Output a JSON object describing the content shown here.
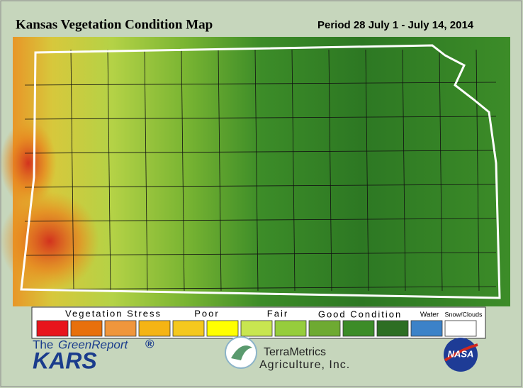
{
  "header": {
    "title": "Kansas Vegetation Condition Map",
    "period": "Period 28  July 1 - July 14, 2014"
  },
  "legend": {
    "labels": [
      "Vegetation Stress",
      "Poor",
      "Fair",
      "Good Condition",
      "Water",
      "Snow/Clouds"
    ],
    "colors": [
      "#e8141c",
      "#e8700c",
      "#f0963c",
      "#f5b414",
      "#f5c81e",
      "#ffff00",
      "#c8e650",
      "#96cd3c",
      "#6eaa32",
      "#3c8c28",
      "#2d6e23",
      "#3c82c8",
      "#ffffff"
    ]
  },
  "logos": {
    "the": "The",
    "green_report": "GreenReport",
    "registered": "®",
    "kars": "KARS",
    "terrametrics": "TerraMetrics",
    "agriculture": "Agriculture, Inc.",
    "nasa": "NASA"
  }
}
